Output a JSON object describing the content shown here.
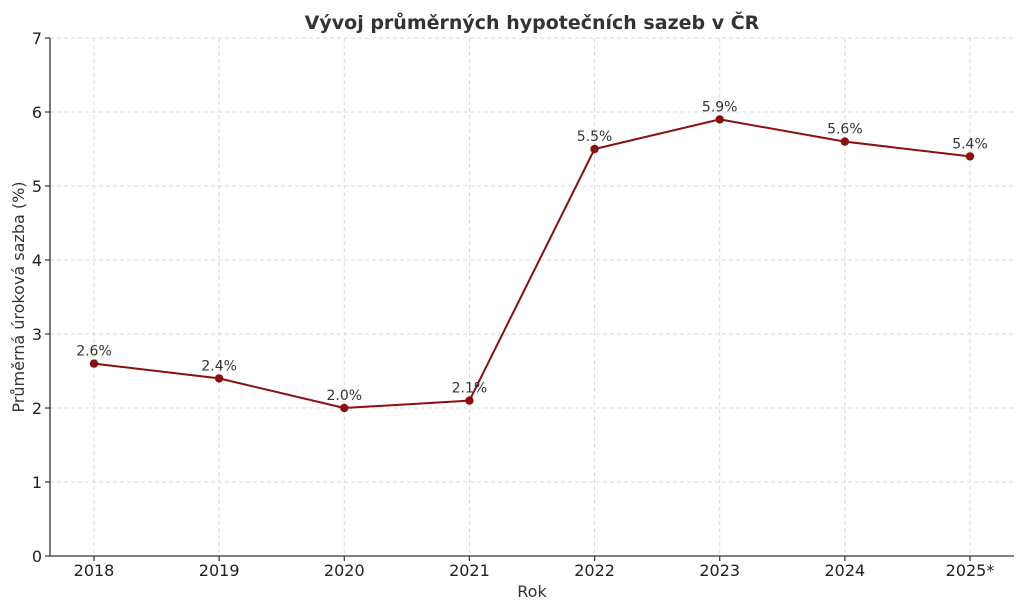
{
  "chart_data": {
    "type": "line",
    "title": "Vývoj průměrných hypotečních sazeb v ČR",
    "xlabel": "Rok",
    "ylabel": "Průměrná úroková sazba (%)",
    "categories": [
      "2018",
      "2019",
      "2020",
      "2021",
      "2022",
      "2023",
      "2024",
      "2025*"
    ],
    "series": [
      {
        "values": [
          2.6,
          2.4,
          2.0,
          2.1,
          5.5,
          5.9,
          5.6,
          5.4
        ],
        "data_labels": [
          "2.6%",
          "2.4%",
          "2.0%",
          "2.1%",
          "5.5%",
          "5.9%",
          "5.6%",
          "5.4%"
        ],
        "color": "#8b0f0f",
        "marker": "circle"
      }
    ],
    "ylim": [
      0,
      7
    ],
    "yticks": [
      0,
      1,
      2,
      3,
      4,
      5,
      6,
      7
    ],
    "grid": true,
    "legend": "none"
  }
}
